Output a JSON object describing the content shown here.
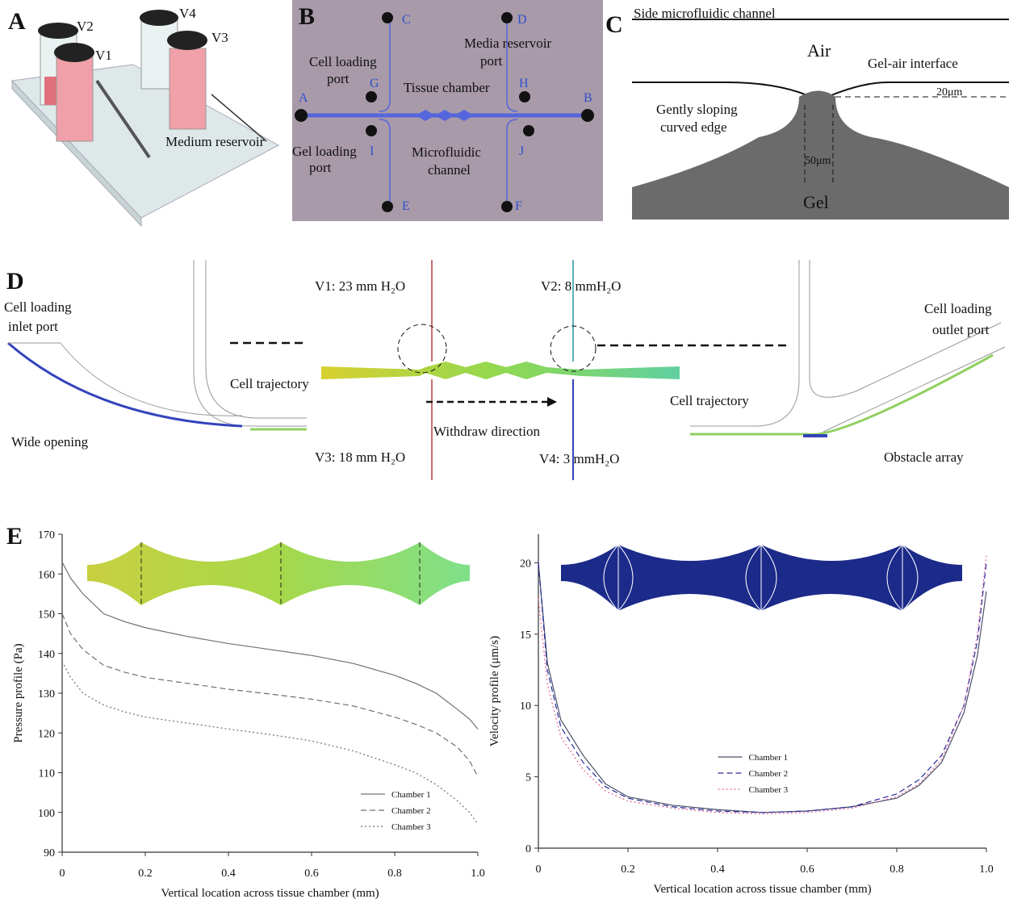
{
  "panels": {
    "a": {
      "letter": "A",
      "v2": "V2",
      "v4": "V4",
      "v3": "V3",
      "v1": "V1",
      "reservoir": "Medium reservoir"
    },
    "b": {
      "letter": "B",
      "c": "C",
      "d": "D",
      "media_port": [
        "Media reservoir",
        "port"
      ],
      "cell_port": [
        "Cell loading",
        "port"
      ],
      "g": "G",
      "tissue": "Tissue chamber",
      "h": "H",
      "a": "A",
      "b": "B",
      "gel_port": [
        "Gel loading",
        "port"
      ],
      "i": "I",
      "j": "J",
      "channel": [
        "Microfluidic",
        "channel"
      ],
      "e": "E",
      "f": "F"
    },
    "c": {
      "letter": "C",
      "side": "Side microfluidic channel",
      "air": "Air",
      "interface": "Gel-air interface",
      "h20": "20μm",
      "edge": [
        "Gently sloping",
        "curved edge"
      ],
      "w50": "50μm",
      "gel": "Gel"
    },
    "d": {
      "letter": "D",
      "inlet": [
        "Cell loading",
        "inlet port"
      ],
      "wide": "Wide opening",
      "traj_left": "Cell trajectory",
      "v1": "V1: 23 mm H₂O",
      "v2": "V2: 8 mmH₂O",
      "withdraw": "Withdraw direction",
      "v3": "V3: 18 mm H₂O",
      "v4": "V4: 3 mmH₂O",
      "outlet": [
        "Cell loading",
        "outlet port"
      ],
      "traj_right": "Cell trajectory",
      "obstacle": "Obstacle array"
    },
    "e": {
      "letter": "E"
    }
  },
  "chart_data": [
    {
      "type": "line",
      "xlabel": "Vertical location across tissue chamber (mm)",
      "ylabel": "Pressure profile (Pa)",
      "xlim": [
        0,
        1
      ],
      "ylim": [
        90,
        170
      ],
      "xticks": [
        0,
        0.2,
        0.4,
        0.6,
        0.8,
        {
          "value": 1,
          "label": "1.0"
        }
      ],
      "yticks": [
        90,
        100,
        110,
        120,
        130,
        140,
        150,
        160,
        170
      ],
      "legend": "lower right",
      "x": [
        0,
        0.02,
        0.05,
        0.1,
        0.15,
        0.2,
        0.3,
        0.4,
        0.5,
        0.6,
        0.7,
        0.8,
        0.85,
        0.9,
        0.95,
        0.98,
        1
      ],
      "series": [
        {
          "name": "Chamber 1",
          "color": "#707070",
          "style": "solid",
          "values": [
            163,
            159,
            155,
            150,
            148,
            146.5,
            144.3,
            142.5,
            141,
            139.5,
            137.5,
            134.5,
            132.5,
            130,
            126,
            123.5,
            121
          ]
        },
        {
          "name": "Chamber 2",
          "color": "#707070",
          "style": "dashed",
          "values": [
            150,
            145,
            141,
            137,
            135.3,
            134,
            132.5,
            131,
            129.8,
            128.5,
            126.8,
            124,
            122.2,
            120,
            116.5,
            113,
            109
          ]
        },
        {
          "name": "Chamber 3",
          "color": "#707070",
          "style": "dotted",
          "values": [
            138,
            134,
            130,
            127,
            125.3,
            124,
            122.5,
            121,
            119.6,
            118,
            115.5,
            112,
            110,
            107,
            103,
            100,
            97
          ]
        }
      ]
    },
    {
      "type": "line",
      "xlabel": "Vertical location across tissue chamber (mm)",
      "ylabel": "Velocity profile (μm/s)",
      "xlim": [
        0,
        1
      ],
      "ylim": [
        0,
        22
      ],
      "xticks": [
        0,
        0.2,
        0.4,
        0.6,
        0.8,
        {
          "value": 1,
          "label": "1.0"
        }
      ],
      "yticks": [
        0,
        5,
        10,
        15,
        20
      ],
      "legend": "lower center",
      "x": [
        0,
        0.02,
        0.05,
        0.1,
        0.15,
        0.2,
        0.3,
        0.4,
        0.5,
        0.6,
        0.7,
        0.8,
        0.85,
        0.9,
        0.95,
        0.98,
        1
      ],
      "series": [
        {
          "name": "Chamber 1",
          "color": "#4a5068",
          "style": "solid",
          "values": [
            20,
            13,
            9,
            6.5,
            4.5,
            3.6,
            3.0,
            2.7,
            2.5,
            2.6,
            2.9,
            3.5,
            4.4,
            6.0,
            9.5,
            13.5,
            18
          ]
        },
        {
          "name": "Chamber 2",
          "color": "#2a2a9a",
          "style": "dashed",
          "values": [
            20,
            12.5,
            8.5,
            6.0,
            4.3,
            3.5,
            2.9,
            2.6,
            2.5,
            2.6,
            2.9,
            3.8,
            4.8,
            6.5,
            10,
            14.5,
            20
          ]
        },
        {
          "name": "Chamber 3",
          "color": "#e0609a",
          "style": "dotted",
          "values": [
            17.5,
            11.5,
            7.8,
            5.5,
            4.0,
            3.3,
            2.8,
            2.5,
            2.4,
            2.5,
            2.8,
            3.6,
            4.5,
            6.2,
            10,
            15,
            20.5
          ]
        }
      ]
    }
  ]
}
